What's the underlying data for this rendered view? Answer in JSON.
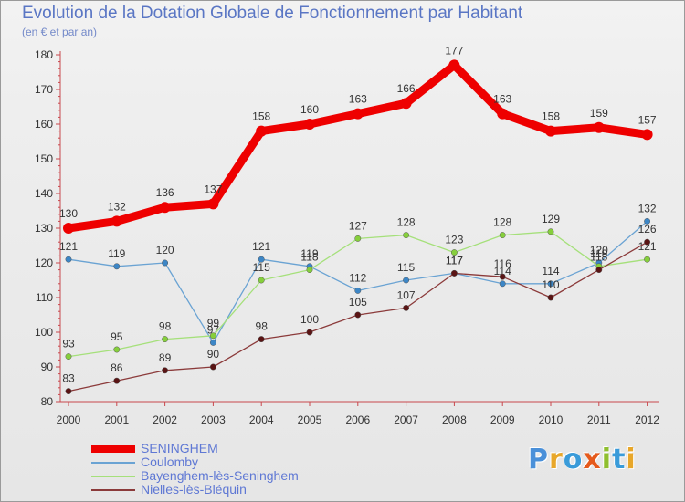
{
  "header": {
    "title": "Evolution de la Dotation Globale de Fonctionnement par Habitant",
    "subtitle": "(en € et par an)"
  },
  "logo": {
    "text": "Proxiti",
    "letters": [
      "P",
      "r",
      "o",
      "x",
      "i",
      "t",
      "i"
    ],
    "colors": [
      "#4a90d9",
      "#e8a72a",
      "#3a9bd9",
      "#e55a1c",
      "#8fbf2f",
      "#3a9bd9",
      "#e8a72a"
    ]
  },
  "chart_data": {
    "type": "line",
    "title": "Evolution de la Dotation Globale de Fonctionnement par Habitant",
    "subtitle": "(en € et par an)",
    "xlabel": "",
    "ylabel": "",
    "ylim": [
      80,
      180
    ],
    "yticks": [
      "80",
      "90",
      "100",
      "110",
      "120",
      "130",
      "140",
      "150",
      "160",
      "170",
      "180"
    ],
    "categories": [
      "2000",
      "2001",
      "2002",
      "2003",
      "2004",
      "2005",
      "2006",
      "2007",
      "2008",
      "2009",
      "2010",
      "2011",
      "2012"
    ],
    "series": [
      {
        "name": "SENINGHEM",
        "color": "#ee0000",
        "point_color": "#ee0000",
        "thick": true,
        "values": [
          130,
          132,
          136,
          137,
          158,
          160,
          163,
          166,
          177,
          163,
          158,
          159,
          157
        ],
        "labels": [
          "130",
          "132",
          "136",
          "137",
          "158",
          "160",
          "163",
          "166",
          "177",
          "163",
          "158",
          "159",
          "157"
        ]
      },
      {
        "name": "Coulomby",
        "color": "#6aa3d3",
        "point_color": "#3c86c6",
        "thick": false,
        "values": [
          121,
          119,
          120,
          97,
          121,
          119,
          112,
          115,
          117,
          114,
          114,
          120,
          132
        ],
        "labels": [
          "121",
          "119",
          "120",
          "97",
          "121",
          "119",
          "112",
          "115",
          "117",
          "114",
          "114",
          "120",
          "132"
        ]
      },
      {
        "name": "Bayenghem-lès-Seninghem",
        "color": "#a5e07a",
        "point_color": "#86cf3c",
        "thick": false,
        "values": [
          93,
          95,
          98,
          99,
          115,
          118,
          127,
          128,
          123,
          128,
          129,
          119,
          121
        ],
        "labels": [
          "93",
          "95",
          "98",
          "99",
          "115",
          "118",
          "127",
          "128",
          "123",
          "128",
          "129",
          "119",
          "121"
        ]
      },
      {
        "name": "Nielles-lès-Bléquin",
        "color": "#8b3a3a",
        "point_color": "#5a1414",
        "thick": false,
        "values": [
          83,
          86,
          89,
          90,
          98,
          100,
          105,
          107,
          117,
          116,
          110,
          118,
          126
        ],
        "labels": [
          "83",
          "86",
          "89",
          "90",
          "98",
          "100",
          "105",
          "107",
          "117",
          "116",
          "110",
          "118",
          "126"
        ]
      }
    ],
    "legend_position": "bottom-left",
    "grid": false
  }
}
